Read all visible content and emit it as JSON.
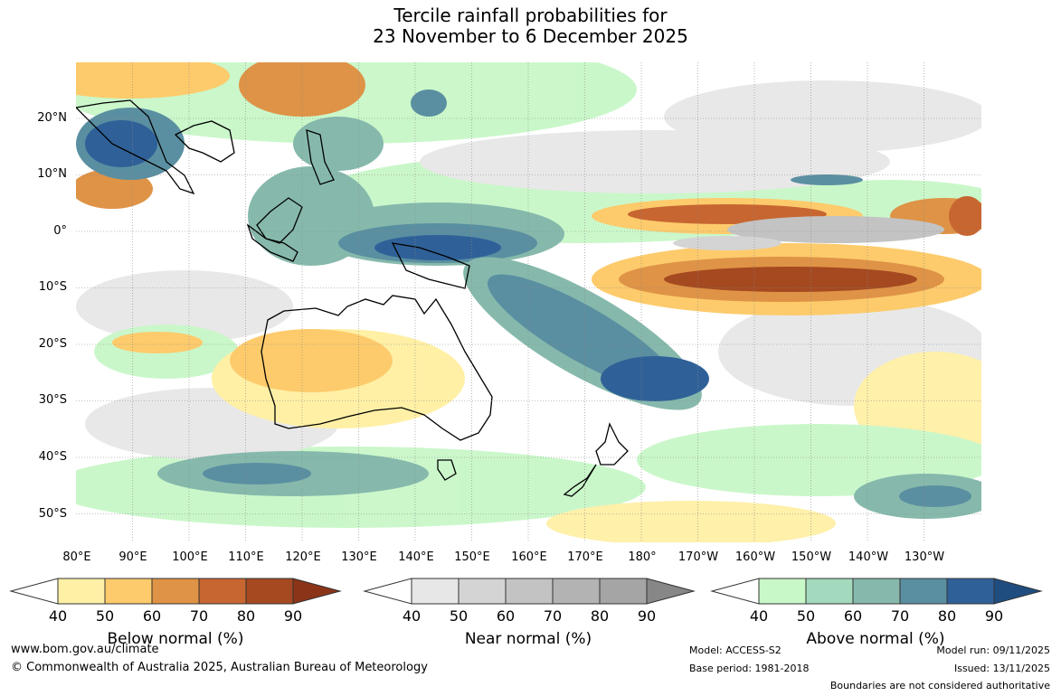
{
  "title": {
    "line1": "Tercile rainfall probabilities for",
    "line2": "23 November to 6 December 2025"
  },
  "latitude_labels": [
    "20°N",
    "10°N",
    "0°",
    "10°S",
    "20°S",
    "30°S",
    "40°S",
    "50°S"
  ],
  "longitude_labels": [
    "80°E",
    "90°E",
    "100°E",
    "110°E",
    "120°E",
    "130°E",
    "140°E",
    "150°E",
    "160°E",
    "170°E",
    "180°",
    "170°W",
    "160°W",
    "150°W",
    "140°W",
    "130°W"
  ],
  "colorbars": [
    {
      "name": "Below normal (%)",
      "ticks": [
        "40",
        "50",
        "60",
        "70",
        "80",
        "90"
      ],
      "colors": [
        "#ffffff",
        "#fff0a6",
        "#fdcb6c",
        "#df9346",
        "#c76631",
        "#a54920",
        "#8c3418"
      ]
    },
    {
      "name": "Near normal (%)",
      "ticks": [
        "40",
        "50",
        "60",
        "70",
        "80",
        "90"
      ],
      "colors": [
        "#ffffff",
        "#e7e7e7",
        "#d4d4d4",
        "#c3c3c3",
        "#b3b3b3",
        "#a5a5a5",
        "#878787"
      ]
    },
    {
      "name": "Above normal (%)",
      "ticks": [
        "40",
        "50",
        "60",
        "70",
        "80",
        "90"
      ],
      "colors": [
        "#ffffff",
        "#c8f7c8",
        "#a3d9bc",
        "#86b9ac",
        "#5a8fa1",
        "#2f6198",
        "#1f4d80"
      ]
    }
  ],
  "footer": {
    "website": "www.bom.gov.au/climate",
    "copyright": "© Commonwealth of Australia 2025, Australian Bureau of Meteorology",
    "model": "Model: ACCESS-S2",
    "base_period": "Base period: 1981-2018",
    "model_run": "Model run: 09/11/2025",
    "issued": "Issued: 13/11/2025",
    "disclaimer": "Boundaries are not considered authoritative"
  }
}
